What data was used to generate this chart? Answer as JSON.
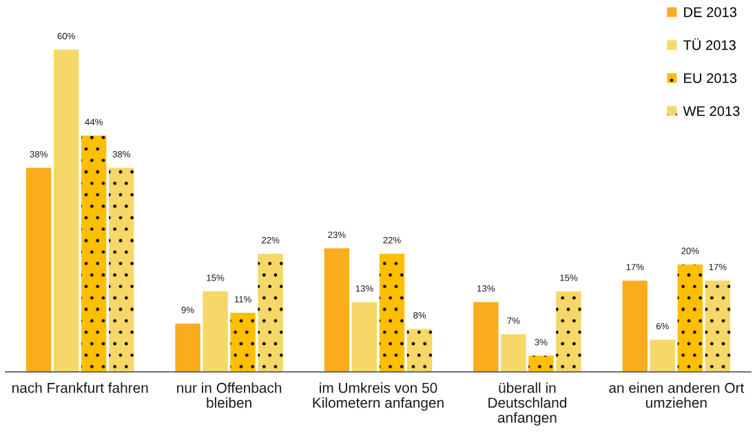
{
  "chart_data": {
    "type": "bar",
    "categories": [
      "nach Frankfurt fahren",
      "nur in Offenbach\nbleiben",
      "im Umkreis von 50\nKilometern anfangen",
      "überall in\nDeutschland\nanfangen",
      "an einen anderen Ort\numziehen"
    ],
    "series": [
      {
        "name": "DE 2013",
        "color": "#fbac1c",
        "values": [
          38,
          9,
          23,
          13,
          17
        ],
        "value_labels": [
          "38%",
          "9%",
          "23%",
          "13%",
          "17%"
        ]
      },
      {
        "name": "TÜ 2013",
        "color": "#f5d867",
        "values": [
          60,
          15,
          13,
          7,
          6
        ],
        "value_labels": [
          "60%",
          "15%",
          "13%",
          "7%",
          "6%"
        ]
      },
      {
        "name": "EU 2013",
        "color": "#fdbf00",
        "line_style": "dotted",
        "values": [
          44,
          11,
          22,
          3,
          20
        ],
        "value_labels": [
          "44%",
          "11%",
          "22%",
          "3%",
          "20%"
        ]
      },
      {
        "name": "WE 2013",
        "color": "#f5d867",
        "line_style": "dotted",
        "values": [
          38,
          22,
          8,
          15,
          17
        ],
        "value_labels": [
          "38%",
          "22%",
          "8%",
          "15%",
          "17%"
        ]
      }
    ],
    "legend": "top right"
  }
}
